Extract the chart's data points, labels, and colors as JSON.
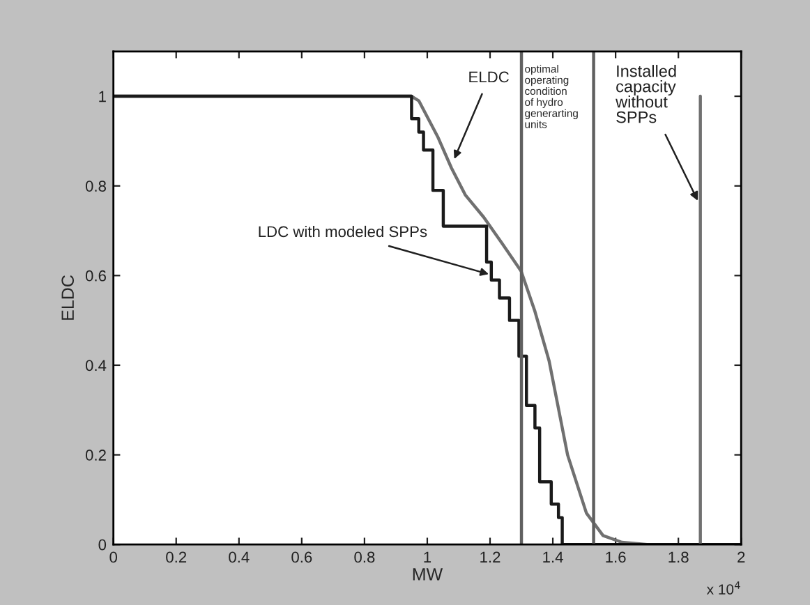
{
  "chart_data": {
    "type": "line",
    "xlabel": "MW",
    "ylabel": "ELDC",
    "xlim": [
      0,
      2
    ],
    "ylim": [
      0,
      1.1
    ],
    "xticks": [
      0,
      0.2,
      0.4,
      0.6,
      0.8,
      1,
      1.2,
      1.4,
      1.6,
      1.8,
      2
    ],
    "yticks": [
      0,
      0.2,
      0.4,
      0.6,
      0.8,
      1
    ],
    "series": [
      {
        "color": "#707070",
        "x": [
          0,
          0.95,
          0.973,
          1.033,
          1.077,
          1.121,
          1.18,
          1.24,
          1.299,
          1.343,
          1.388,
          1.447,
          1.507,
          1.56,
          1.62,
          1.7,
          2
        ],
        "values": [
          1,
          1,
          0.99,
          0.91,
          0.84,
          0.78,
          0.73,
          0.67,
          0.61,
          0.52,
          0.41,
          0.2,
          0.07,
          0.02,
          0.005,
          0,
          0
        ]
      },
      {
        "color": "#1a1a1a",
        "x": [
          0,
          0.95,
          0.95,
          0.973,
          0.973,
          0.988,
          0.988,
          1.018,
          1.018,
          1.051,
          1.051,
          1.189,
          1.189,
          1.204,
          1.204,
          1.23,
          1.23,
          1.262,
          1.262,
          1.292,
          1.292,
          1.316,
          1.316,
          1.343,
          1.343,
          1.358,
          1.358,
          1.395,
          1.395,
          1.418,
          1.418,
          1.43,
          1.43,
          2
        ],
        "values": [
          1,
          1,
          0.95,
          0.95,
          0.92,
          0.92,
          0.88,
          0.88,
          0.79,
          0.79,
          0.71,
          0.71,
          0.63,
          0.63,
          0.59,
          0.59,
          0.55,
          0.55,
          0.5,
          0.5,
          0.42,
          0.42,
          0.31,
          0.31,
          0.26,
          0.26,
          0.14,
          0.14,
          0.09,
          0.09,
          0.06,
          0.06,
          0,
          0
        ]
      },
      {
        "color": "#707070",
        "x": [
          1.87,
          1.87
        ],
        "values": [
          0,
          1
        ]
      }
    ],
    "ref_lines": [
      {
        "axis": "x",
        "value": 1.3,
        "color": "#606060"
      },
      {
        "axis": "x",
        "value": 1.53,
        "color": "#606060"
      }
    ],
    "annotations": [
      {
        "text": "ELDC",
        "x": 1.086,
        "y": 0.86
      },
      {
        "text": "LDC with modeled SPPs",
        "x": 1.196,
        "y": 0.603
      },
      {
        "text": "Installed\ncapacity\nwithout\nSPPs",
        "x": 1.862,
        "y": 0.767
      },
      "optimal\noperating\ncondition\nof hydro\ngenerarting\nunits",
      "x 10$^{4}$"
    ]
  }
}
